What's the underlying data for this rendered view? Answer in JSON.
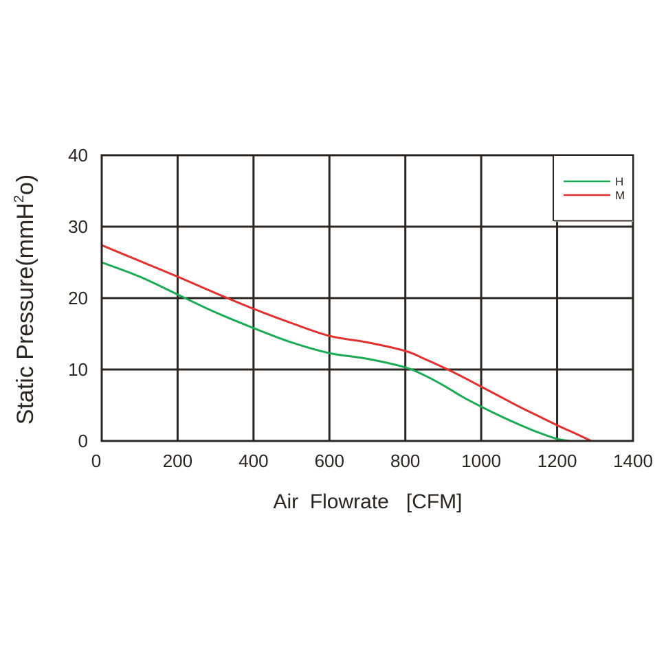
{
  "chart_data": {
    "type": "line",
    "title": "",
    "xlabel": "Air  Flowrate   [CFM]",
    "ylabel_main": "Static Pressure(mmH",
    "ylabel_sup": "2",
    "ylabel_end": "o)",
    "xlim": [
      0,
      1400
    ],
    "ylim": [
      0,
      40
    ],
    "x_ticks": [
      0,
      200,
      400,
      600,
      800,
      1000,
      1200,
      1400
    ],
    "x_tick_labels": [
      "0",
      "200",
      "400",
      "600",
      "800",
      "1000",
      "1200",
      "1400"
    ],
    "y_ticks": [
      0,
      10,
      20,
      30,
      40
    ],
    "y_tick_labels": [
      "0",
      "10",
      "20",
      "30",
      "40"
    ],
    "grid": true,
    "legend_position": "top-right",
    "series": [
      {
        "name": "H",
        "color": "#1daa55",
        "x": [
          0,
          100,
          200,
          300,
          400,
          500,
          600,
          700,
          800,
          850,
          900,
          950,
          1000,
          1050,
          1100,
          1150,
          1200,
          1235
        ],
        "y": [
          25,
          23,
          20.5,
          18,
          15.8,
          13.8,
          12.3,
          11.5,
          10.3,
          9.2,
          7.8,
          6.2,
          4.8,
          3.5,
          2.3,
          1.2,
          0.3,
          0
        ]
      },
      {
        "name": "M",
        "color": "#e03030",
        "x": [
          0,
          100,
          200,
          300,
          400,
          500,
          600,
          700,
          800,
          850,
          900,
          950,
          1000,
          1050,
          1100,
          1150,
          1200,
          1250,
          1290
        ],
        "y": [
          27.4,
          25.2,
          23,
          20.7,
          18.5,
          16.5,
          14.7,
          13.8,
          12.6,
          11.5,
          10.3,
          9,
          7.6,
          6.2,
          4.8,
          3.5,
          2.2,
          1,
          0
        ]
      }
    ]
  }
}
